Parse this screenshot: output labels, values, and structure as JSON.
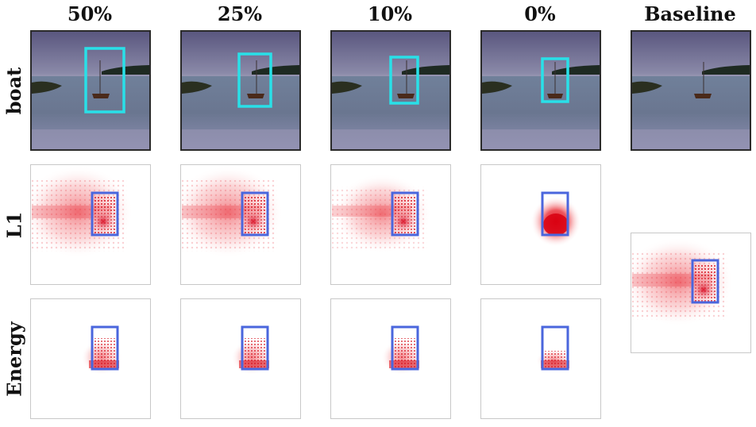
{
  "columns": [
    "50%",
    "25%",
    "10%",
    "0%",
    "Baseline"
  ],
  "rows": [
    "boat",
    "L1",
    "Energy"
  ],
  "colors": {
    "bbox_image": "#29e0e8",
    "bbox_heatmap": "#4a66dd",
    "heat": "#e8202a",
    "sky_top": "#6a6890",
    "water": "#6f7f98",
    "shore": "#1e2a22"
  }
}
